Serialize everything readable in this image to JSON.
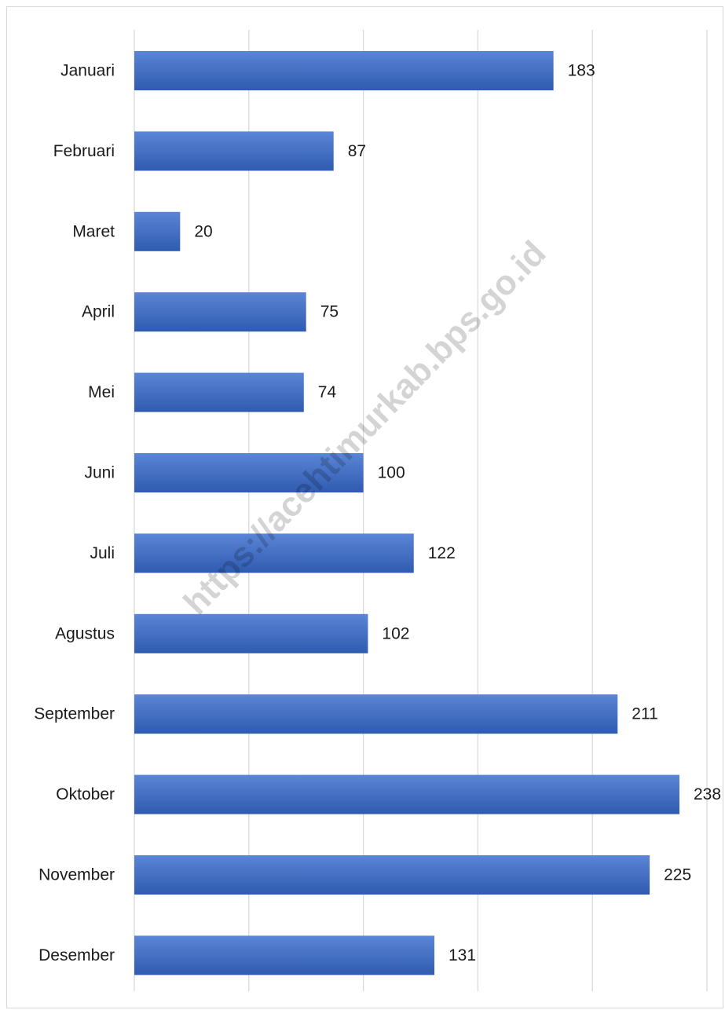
{
  "chart_data": {
    "type": "bar",
    "orientation": "horizontal",
    "title": "",
    "xlabel": "",
    "ylabel": "",
    "categories": [
      "Januari",
      "Februari",
      "Maret",
      "April",
      "Mei",
      "Juni",
      "Juli",
      "Agustus",
      "September",
      "Oktober",
      "November",
      "Desember"
    ],
    "values": [
      183,
      87,
      20,
      75,
      74,
      100,
      122,
      102,
      211,
      238,
      225,
      131
    ],
    "data_labels": [
      "183",
      "87",
      "20",
      "75",
      "74",
      "100",
      "122",
      "102",
      "211",
      "238",
      "225",
      "131"
    ],
    "xlim": [
      0,
      250
    ],
    "grid": true,
    "gridline_step": 50,
    "legend": "none",
    "bar_color": "#4472C4"
  },
  "watermark": "https://acehtimurkab.bps.go.id",
  "colors": {
    "bar_top": "#5B85D6",
    "bar_bottom": "#2F5BB0",
    "gridline": "#D9D9D9",
    "text": "#1A1A1A"
  }
}
